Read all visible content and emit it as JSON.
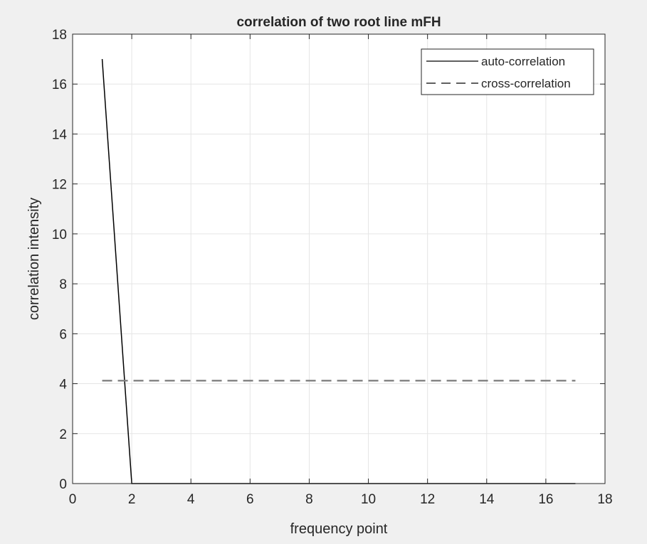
{
  "figure": {
    "background": "#f0f0f0",
    "axes_background": "#ffffff",
    "axis_color": "#262626",
    "grid_color": "#e5e5e5"
  },
  "chart_data": {
    "type": "line",
    "title": "correlation of two root line mFH",
    "xlabel": "frequency point",
    "ylabel": "correlation intensity",
    "xlim": [
      0,
      18
    ],
    "ylim": [
      0,
      18
    ],
    "xticks": [
      0,
      2,
      4,
      6,
      8,
      10,
      12,
      14,
      16,
      18
    ],
    "yticks": [
      0,
      2,
      4,
      6,
      8,
      10,
      12,
      14,
      16,
      18
    ],
    "grid": true,
    "legend_position": "top-right",
    "series": [
      {
        "name": "auto-correlation",
        "style": "solid",
        "color": "#000000",
        "x": [
          1,
          2,
          3,
          4,
          5,
          6,
          7,
          8,
          9,
          10,
          11,
          12,
          13,
          14,
          15,
          16,
          17
        ],
        "y": [
          17,
          0,
          0,
          0,
          0,
          0,
          0,
          0,
          0,
          0,
          0,
          0,
          0,
          0,
          0,
          0,
          0
        ]
      },
      {
        "name": "cross-correlation",
        "style": "dashed",
        "color": "#808080",
        "x": [
          1,
          2,
          3,
          4,
          5,
          6,
          7,
          8,
          9,
          10,
          11,
          12,
          13,
          14,
          15,
          16,
          17
        ],
        "y": [
          4.12,
          4.12,
          4.12,
          4.12,
          4.12,
          4.12,
          4.12,
          4.12,
          4.12,
          4.12,
          4.12,
          4.12,
          4.12,
          4.12,
          4.12,
          4.12,
          4.12
        ]
      }
    ]
  }
}
